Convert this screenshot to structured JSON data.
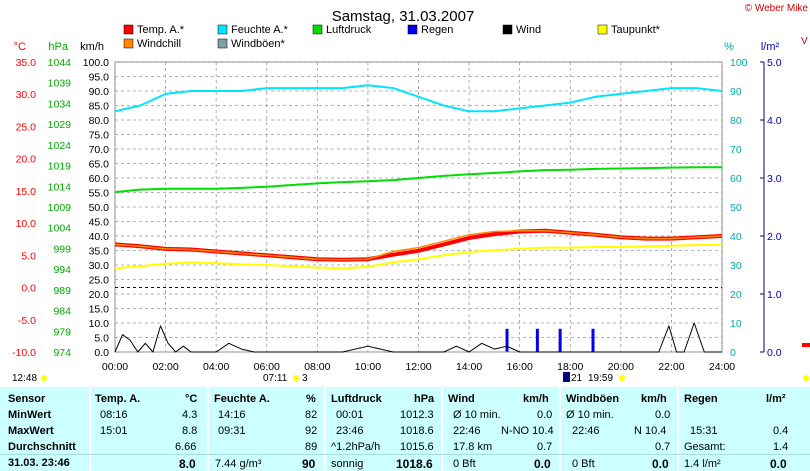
{
  "title": "Samstag, 31.03.2007",
  "credit": "© Weber Mike",
  "colors": {
    "temp": "#ff0000",
    "humidity": "#00e5ff",
    "pressure": "#00dd00",
    "rain": "#0000ee",
    "wind": "#000000",
    "dewpoint": "#ffff00",
    "windchill": "#ff8800",
    "gust": "#7f9fa0",
    "axis_temp": "#ff0000",
    "axis_pressure": "#00aa00",
    "axis_humidity": "#00aaaa",
    "axis_rain": "#0000aa",
    "stats_bg": "#ccffff"
  },
  "axis_units": {
    "temp": "°C",
    "pressure": "hPa",
    "wind": "km/h",
    "humidity": "%",
    "rain": "l/m²"
  },
  "legend": [
    {
      "label": "Temp. A.*",
      "color": "#ff0000"
    },
    {
      "label": "Feuchte A.*",
      "color": "#00e5ff"
    },
    {
      "label": "Luftdruck",
      "color": "#00dd00"
    },
    {
      "label": "Regen",
      "color": "#0000ee"
    },
    {
      "label": "Wind",
      "color": "#000000"
    },
    {
      "label": "Taupunkt*",
      "color": "#ffff00"
    },
    {
      "label": "Windchill",
      "color": "#ff8800"
    },
    {
      "label": "Windböen*",
      "color": "#7f9fa0"
    }
  ],
  "chart_data": {
    "type": "line",
    "title": "Samstag, 31.03.2007",
    "x_range": [
      0,
      24
    ],
    "x_ticks": [
      "00:00",
      "02:00",
      "04:00",
      "06:00",
      "08:00",
      "10:00",
      "12:00",
      "14:00",
      "16:00",
      "18:00",
      "20:00",
      "22:00",
      "24:00"
    ],
    "grid": true,
    "axes": {
      "temp": {
        "range": [
          -10,
          35
        ],
        "ticks": [
          "35.0",
          "30.0",
          "25.0",
          "20.0",
          "15.0",
          "10.0",
          "5.0",
          "0.0",
          "-5.0",
          "-10.0"
        ]
      },
      "pressure": {
        "range": [
          974,
          1044
        ],
        "ticks": [
          "1044",
          "1039",
          "1034",
          "1029",
          "1024",
          "1019",
          "1014",
          "1009",
          "1004",
          "999",
          "994",
          "989",
          "984",
          "979",
          "974"
        ]
      },
      "wind": {
        "range": [
          0,
          100
        ],
        "ticks": [
          "100.0",
          "95.0",
          "90.0",
          "85.0",
          "80.0",
          "75.0",
          "70.0",
          "65.0",
          "60.0",
          "55.0",
          "50.0",
          "45.0",
          "40.0",
          "35.0",
          "30.0",
          "25.0",
          "20.0",
          "15.0",
          "10.0",
          "5.0",
          "0.0"
        ]
      },
      "humidity": {
        "range": [
          0,
          100
        ],
        "ticks": [
          "100",
          "90",
          "80",
          "70",
          "60",
          "50",
          "40",
          "30",
          "20",
          "10",
          "0"
        ]
      },
      "rain": {
        "range": [
          0,
          5
        ],
        "ticks": [
          "5.0",
          "4.0",
          "3.0",
          "2.0",
          "1.0",
          "0.0"
        ]
      }
    },
    "zero_line_temp": 0.0,
    "series": [
      {
        "name": "Temp. A.*",
        "axis": "temp",
        "color": "#ff0000",
        "x": [
          0,
          1,
          2,
          3,
          4,
          5,
          6,
          7,
          8,
          9,
          10,
          11,
          12,
          13,
          14,
          15,
          16,
          17,
          18,
          19,
          20,
          21,
          22,
          23,
          24
        ],
        "y": [
          6.7,
          6.4,
          6.0,
          5.9,
          5.6,
          5.3,
          5.0,
          4.7,
          4.4,
          4.3,
          4.4,
          5.1,
          5.7,
          6.7,
          7.7,
          8.3,
          8.7,
          8.8,
          8.5,
          8.2,
          7.8,
          7.6,
          7.6,
          7.8,
          8.0
        ]
      },
      {
        "name": "Windchill",
        "axis": "temp",
        "color": "#ff8800",
        "x": [
          0,
          1,
          2,
          3,
          4,
          5,
          6,
          7,
          8,
          9,
          10,
          11,
          12,
          13,
          14,
          15,
          16,
          17,
          18,
          19,
          20,
          21,
          22,
          23,
          24
        ],
        "y": [
          6.7,
          6.4,
          6.0,
          5.9,
          5.6,
          5.3,
          5.0,
          4.7,
          4.4,
          4.3,
          4.4,
          5.6,
          6.2,
          7.2,
          8.2,
          8.7,
          8.8,
          8.8,
          8.5,
          8.2,
          7.8,
          7.6,
          7.6,
          7.8,
          8.0
        ]
      },
      {
        "name": "Feuchte A.*",
        "axis": "humidity",
        "color": "#00e5ff",
        "x": [
          0,
          1,
          2,
          3,
          4,
          5,
          6,
          7,
          8,
          9,
          10,
          11,
          12,
          13,
          14,
          15,
          16,
          17,
          18,
          19,
          20,
          21,
          22,
          23,
          24
        ],
        "y": [
          83,
          85,
          89,
          90,
          90,
          90,
          91,
          91,
          91,
          91,
          92,
          91,
          88,
          85,
          83,
          83,
          84,
          85,
          86,
          88,
          89,
          90,
          91,
          91,
          90
        ]
      },
      {
        "name": "Luftdruck",
        "axis": "pressure",
        "color": "#00dd00",
        "x": [
          0,
          1,
          2,
          3,
          4,
          5,
          6,
          7,
          8,
          9,
          10,
          11,
          12,
          13,
          14,
          15,
          16,
          17,
          18,
          19,
          20,
          21,
          22,
          23,
          24
        ],
        "y": [
          1012.6,
          1013.2,
          1013.4,
          1013.4,
          1013.4,
          1013.6,
          1013.9,
          1014.3,
          1014.7,
          1015.0,
          1015.2,
          1015.5,
          1016.0,
          1016.5,
          1016.9,
          1017.2,
          1017.6,
          1017.9,
          1018.0,
          1018.2,
          1018.3,
          1018.4,
          1018.5,
          1018.6,
          1018.6
        ]
      },
      {
        "name": "Taupunkt*",
        "axis": "temp",
        "color": "#ffff00",
        "x": [
          0,
          1,
          2,
          3,
          4,
          5,
          6,
          7,
          8,
          9,
          10,
          11,
          12,
          13,
          14,
          15,
          16,
          17,
          18,
          19,
          20,
          21,
          22,
          23,
          24
        ],
        "y": [
          3.0,
          3.3,
          3.7,
          3.9,
          3.8,
          3.6,
          3.5,
          3.3,
          3.1,
          3.0,
          3.2,
          3.9,
          4.4,
          5.0,
          5.5,
          5.8,
          6.0,
          6.2,
          6.2,
          6.3,
          6.3,
          6.4,
          6.5,
          6.6,
          6.6
        ]
      },
      {
        "name": "Wind",
        "axis": "wind",
        "color": "#000000",
        "x": [
          0,
          0.3,
          0.6,
          0.9,
          1.2,
          1.5,
          1.8,
          2.1,
          2.4,
          2.7,
          3.0,
          3.5,
          4.0,
          4.5,
          5.0,
          5.5,
          6.0,
          7.0,
          8.0,
          9.0,
          10.0,
          11.0,
          12.0,
          13.0,
          13.5,
          14.0,
          14.5,
          15.0,
          15.5,
          16.0,
          17.0,
          18.0,
          19.0,
          20.0,
          21.0,
          21.5,
          21.9,
          22.2,
          22.5,
          22.9,
          23.3,
          24.0
        ],
        "y": [
          0,
          6,
          4,
          0,
          3,
          0,
          9,
          3,
          0,
          2,
          0,
          0,
          0,
          3,
          1,
          0,
          0,
          0,
          0,
          0,
          2,
          0,
          0,
          0,
          2,
          0,
          3,
          1,
          2,
          0,
          0,
          0,
          0,
          0,
          0,
          0,
          9,
          0,
          0,
          10,
          0,
          0
        ]
      },
      {
        "name": "Windböen*",
        "axis": "wind",
        "color": "#7f9fa0",
        "x": [
          0,
          4,
          8,
          12,
          16,
          20,
          24
        ],
        "y": [
          0,
          0,
          0,
          0,
          0,
          0,
          0
        ]
      }
    ],
    "rain_bars": {
      "axis": "rain",
      "color": "#0000ee",
      "x": [
        15.5,
        16.7,
        17.6,
        18.9
      ],
      "y": [
        0.4,
        0.4,
        0.4,
        0.4
      ]
    }
  },
  "sun": {
    "sunrise_label": "07:11",
    "sunrise_sub": "3",
    "sunset_label": "19:59",
    "moon_label": "21",
    "left_time": "12:48"
  },
  "stats": {
    "sensor_header": "Sensor",
    "rows": [
      "MinWert",
      "MaxWert",
      "Durchschnitt",
      "31.03. 23:46"
    ],
    "temp": {
      "header": "Temp. A.",
      "unit": "°C",
      "min_time": "08:16",
      "min": "4.3",
      "max_time": "15:01",
      "max": "8.8",
      "avg": "6.66",
      "cur": "8.0"
    },
    "hum": {
      "header": "Feuchte A.",
      "unit": "%",
      "min_time": "14:16",
      "min": "82",
      "max_time": "09:31",
      "max": "92",
      "avg": "89",
      "cur_abs": "7.44 g/m³",
      "cur": "90"
    },
    "press": {
      "header": "Luftdruck",
      "unit": "hPa",
      "min_time": "00:01",
      "min": "1012.3",
      "max_time": "23:46",
      "max": "1018.6",
      "trend": "^1.2hPa/h",
      "avg": "1015.6",
      "state": "sonnig",
      "cur": "1018.6"
    },
    "wind": {
      "header": "Wind",
      "unit": "km/h",
      "min_lbl": "Ø 10 min.",
      "min": "0.0",
      "max_time": "22:46",
      "max": "N-NO 10.4",
      "dist": "17.8 km",
      "avg": "0.7",
      "bft": "0 Bft",
      "cur": "0.0"
    },
    "gust": {
      "header": "Windböen",
      "unit": "km/h",
      "min_lbl": "Ø 10 min.",
      "min": "0.0",
      "max_time": "22:46",
      "max": "N 10.4",
      "avg": "0.7",
      "bft": "0 Bft",
      "cur": "0.0"
    },
    "rain": {
      "header": "Regen",
      "unit": "l/m²",
      "max_time": "15:31",
      "max": "0.4",
      "total_lbl": "Gesamt:",
      "total": "1.4",
      "cur_lbl": "1.4 l/m²",
      "cur": "0.0"
    }
  }
}
